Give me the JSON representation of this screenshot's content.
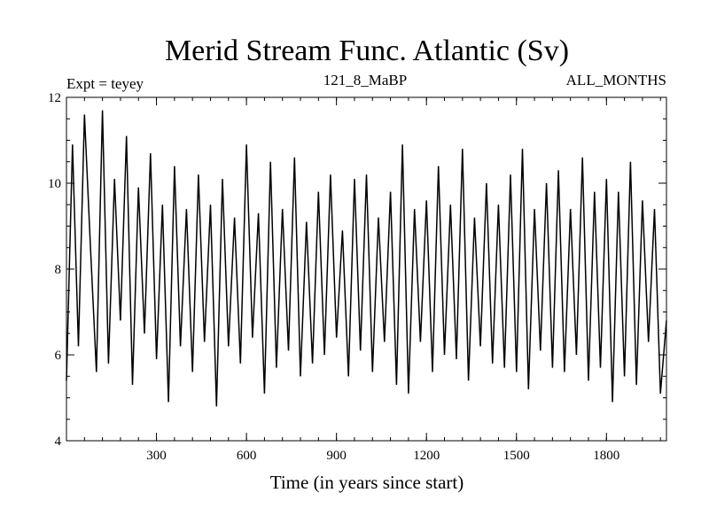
{
  "chart_data": {
    "type": "line",
    "title": "Merid Stream Func. Atlantic (Sv)",
    "subtitle_left": "Expt = teyey",
    "subtitle_center": "121_8_MaBP",
    "subtitle_right": "ALL_MONTHS",
    "xlabel": "Time (in years since start)",
    "ylabel": "",
    "xlim": [
      0,
      2000
    ],
    "ylim": [
      4,
      12
    ],
    "xticks": [
      300,
      600,
      900,
      1200,
      1500,
      1800
    ],
    "yticks": [
      4,
      6,
      8,
      10,
      12
    ],
    "grid": false,
    "series": [
      {
        "color": "#000000",
        "x": [
          0,
          20,
          40,
          60,
          80,
          100,
          120,
          140,
          160,
          180,
          200,
          220,
          240,
          260,
          280,
          300,
          320,
          340,
          360,
          380,
          400,
          420,
          440,
          460,
          480,
          500,
          520,
          540,
          560,
          580,
          600,
          620,
          640,
          660,
          680,
          700,
          720,
          740,
          760,
          780,
          800,
          820,
          840,
          860,
          880,
          900,
          920,
          940,
          960,
          980,
          1000,
          1020,
          1040,
          1060,
          1080,
          1100,
          1120,
          1140,
          1160,
          1180,
          1200,
          1220,
          1240,
          1260,
          1280,
          1300,
          1320,
          1340,
          1360,
          1380,
          1400,
          1420,
          1440,
          1460,
          1480,
          1500,
          1520,
          1540,
          1560,
          1580,
          1600,
          1620,
          1640,
          1660,
          1680,
          1700,
          1720,
          1740,
          1760,
          1780,
          1800,
          1820,
          1840,
          1860,
          1880,
          1900,
          1920,
          1940,
          1960,
          1980,
          2000
        ],
        "values": [
          5.4,
          10.9,
          6.2,
          11.6,
          8.5,
          5.6,
          11.7,
          5.8,
          10.1,
          6.8,
          11.1,
          5.3,
          9.9,
          6.5,
          10.7,
          5.9,
          9.5,
          4.9,
          10.4,
          6.2,
          9.4,
          5.6,
          10.2,
          6.3,
          9.5,
          4.8,
          10.1,
          6.2,
          9.2,
          5.8,
          10.9,
          6.4,
          9.3,
          5.1,
          10.5,
          5.7,
          9.4,
          6.1,
          10.6,
          5.5,
          9.1,
          5.8,
          9.8,
          6.0,
          10.2,
          6.4,
          8.9,
          5.5,
          10.1,
          6.1,
          10.2,
          5.6,
          9.2,
          6.3,
          9.8,
          5.3,
          10.9,
          5.1,
          9.4,
          6.3,
          9.6,
          5.6,
          10.4,
          6.0,
          9.5,
          5.9,
          10.8,
          5.4,
          9.2,
          6.2,
          10.0,
          5.8,
          9.5,
          5.7,
          10.2,
          5.6,
          10.8,
          5.2,
          9.4,
          6.1,
          10.0,
          5.7,
          10.3,
          5.6,
          9.4,
          6.0,
          10.6,
          5.4,
          9.8,
          5.7,
          10.1,
          4.9,
          9.8,
          5.5,
          10.5,
          5.3,
          9.6,
          6.3,
          9.4,
          5.1,
          6.8
        ]
      }
    ]
  }
}
